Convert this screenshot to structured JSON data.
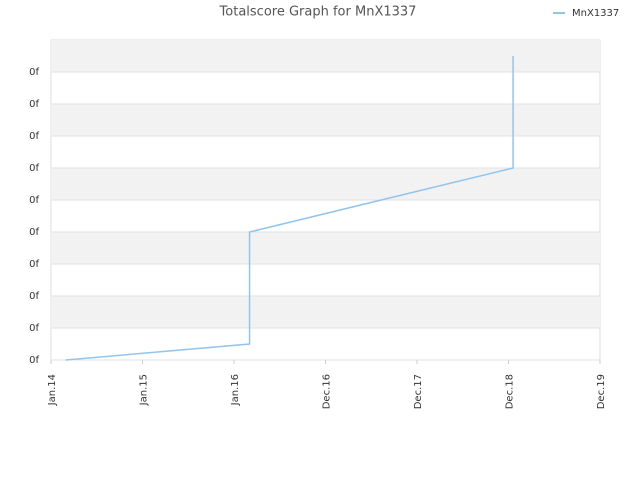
{
  "chart_data": {
    "type": "line",
    "title": "Totalscore Graph for MnX1337",
    "x": [
      0.16,
      2.17,
      2.17,
      5.05,
      5.05
    ],
    "series": [
      {
        "name": "MnX1337",
        "color": "#92c5ee",
        "values": [
          0,
          0.5,
          4,
          6,
          9.5
        ]
      }
    ],
    "xlim": [
      0,
      6
    ],
    "xticks": [
      {
        "value": 0,
        "label": "Jan.14"
      },
      {
        "value": 1,
        "label": "Jan.15"
      },
      {
        "value": 2,
        "label": "Jan.16"
      },
      {
        "value": 3,
        "label": "Dec.16"
      },
      {
        "value": 4,
        "label": "Dec.17"
      },
      {
        "value": 5,
        "label": "Dec.18"
      },
      {
        "value": 6,
        "label": "Dec.19"
      }
    ],
    "ylim": [
      0,
      10
    ],
    "yticks": [
      {
        "value": 0,
        "label": "0f"
      },
      {
        "value": 1,
        "label": "0f"
      },
      {
        "value": 2,
        "label": "0f"
      },
      {
        "value": 3,
        "label": "0f"
      },
      {
        "value": 4,
        "label": "0f"
      },
      {
        "value": 5,
        "label": "0f"
      },
      {
        "value": 6,
        "label": "0f"
      },
      {
        "value": 7,
        "label": "0f"
      },
      {
        "value": 8,
        "label": "0f"
      },
      {
        "value": 9,
        "label": "0f"
      }
    ],
    "grid": true,
    "legend": "top-right"
  }
}
